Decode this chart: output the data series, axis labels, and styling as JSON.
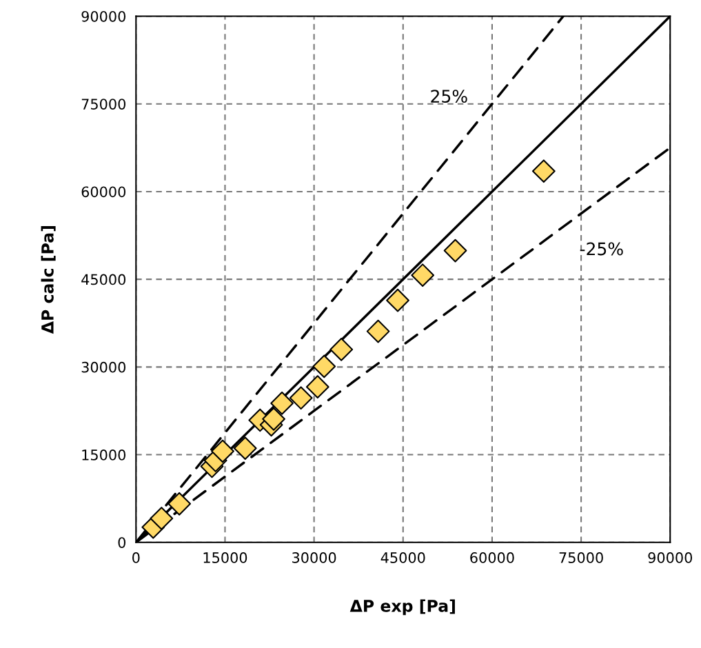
{
  "chart_data": {
    "type": "scatter",
    "xlabel": "ΔP exp [Pa]",
    "ylabel": "ΔP calc [Pa]",
    "xlim": [
      0,
      90000
    ],
    "ylim": [
      0,
      90000
    ],
    "xticks": [
      0,
      15000,
      30000,
      45000,
      60000,
      75000,
      90000
    ],
    "yticks": [
      0,
      15000,
      30000,
      45000,
      60000,
      75000,
      90000
    ],
    "grid": true,
    "series": [
      {
        "type": "line",
        "color": "#000000",
        "line_style": "solid",
        "marker": "none",
        "x": [
          0,
          90000
        ],
        "values": [
          0,
          90000
        ]
      },
      {
        "type": "line",
        "color": "#000000",
        "line_style": "dashed",
        "marker": "none",
        "x": [
          0,
          72000
        ],
        "values": [
          0,
          90000
        ]
      },
      {
        "type": "line",
        "color": "#000000",
        "line_style": "dashed",
        "marker": "none",
        "x": [
          0,
          90000
        ],
        "values": [
          0,
          67500
        ]
      },
      {
        "color": "#ffd966",
        "marker": "diamond",
        "x": [
          2900,
          4300,
          7300,
          12800,
          13400,
          14600,
          18400,
          20900,
          22800,
          23200,
          24600,
          27800,
          30600,
          31700,
          34600,
          40800,
          44100,
          48300,
          53800,
          68700
        ],
        "values": [
          2600,
          4100,
          6600,
          13000,
          14000,
          15600,
          16100,
          20900,
          20100,
          21100,
          23800,
          24700,
          26600,
          30100,
          33000,
          36100,
          41400,
          45700,
          49900,
          63500
        ]
      }
    ],
    "annotations": [
      "25%",
      "-25%"
    ]
  }
}
